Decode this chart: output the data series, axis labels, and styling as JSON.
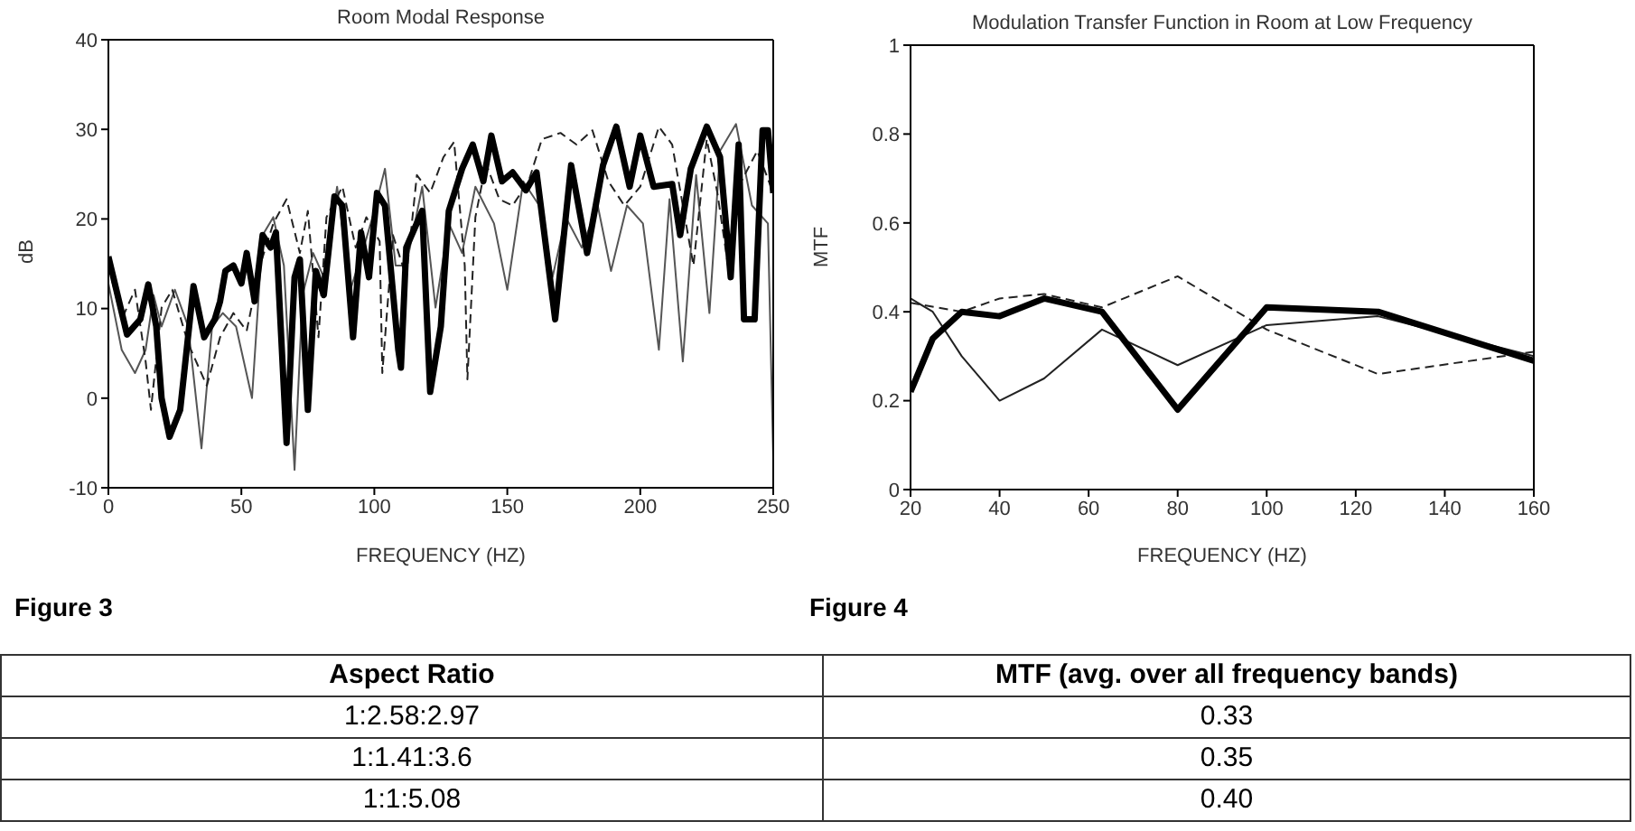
{
  "chart_data": [
    {
      "type": "line",
      "title": "Room Modal Response",
      "xlabel": "FREQUENCY (HZ)",
      "ylabel": "dB",
      "xlim": [
        0,
        250
      ],
      "xticks": [
        0,
        50,
        100,
        150,
        200,
        250
      ],
      "ylim": [
        -10,
        40
      ],
      "yticks": [
        -10,
        0,
        10,
        20,
        30,
        40
      ],
      "marker": "none",
      "annotations": [
        "Figure 3"
      ],
      "series": [
        {
          "color": "#555555",
          "line_style": "solid",
          "x": [
            0,
            5,
            10,
            14,
            17,
            20,
            25,
            30,
            35,
            39,
            43,
            48,
            54,
            58,
            62,
            66,
            70,
            73,
            77,
            81,
            86,
            91,
            96,
            100,
            104,
            108,
            112,
            118,
            123,
            128,
            133,
            138,
            145,
            150,
            156,
            162,
            167,
            172,
            178,
            184,
            189,
            195,
            201,
            207,
            211,
            216,
            221,
            226,
            230,
            236,
            242,
            248,
            250
          ],
          "values": [
            12.8,
            5.4,
            2.8,
            5.4,
            11.5,
            8,
            12.1,
            8,
            -5.6,
            8,
            9.5,
            8,
            0,
            18.2,
            20.2,
            14.8,
            -8,
            11.5,
            16.2,
            13.5,
            23.6,
            12.1,
            16.8,
            20.9,
            25.6,
            14.8,
            14.8,
            23.6,
            10.1,
            19.5,
            16.2,
            23.6,
            19.5,
            12.1,
            24.2,
            21.5,
            13.5,
            20.2,
            16.8,
            21.5,
            14.2,
            21.5,
            19.5,
            5.4,
            22.2,
            4.1,
            24.9,
            9.5,
            27.6,
            30.6,
            21.5,
            19.5,
            -6.6
          ]
        },
        {
          "color": "#222222",
          "line_style": "dashed",
          "x": [
            0,
            5,
            10,
            14,
            16,
            20,
            24,
            30,
            37,
            42,
            47,
            52,
            57,
            62,
            67,
            72,
            75,
            79,
            82,
            88,
            93,
            97,
            102,
            103,
            107,
            112,
            116,
            121,
            126,
            130,
            134,
            135,
            138,
            142,
            147,
            152,
            158,
            163,
            170,
            176,
            182,
            188,
            194,
            200,
            207,
            212,
            216,
            220,
            225,
            229,
            233,
            238,
            244,
            250
          ],
          "values": [
            14.8,
            8.8,
            12.1,
            4.1,
            -1.3,
            10.1,
            12.1,
            6.1,
            1.4,
            6.8,
            9.5,
            7.5,
            14.8,
            19.5,
            22.2,
            16.2,
            20.9,
            6.8,
            20.2,
            23.6,
            16.8,
            20.2,
            17.5,
            2.8,
            18.2,
            13.5,
            24.9,
            22.9,
            26.9,
            28.6,
            14.8,
            2.1,
            20.2,
            26.2,
            22.2,
            21.5,
            24.2,
            28.9,
            29.6,
            28.3,
            29.9,
            24.2,
            21.5,
            23.6,
            30.3,
            28.3,
            21.5,
            14.8,
            28.9,
            22.9,
            14.8,
            24.2,
            27.6,
            22.9
          ]
        },
        {
          "color": "#000000",
          "line_style": "solid",
          "x": [
            0,
            7,
            12,
            15,
            18,
            20,
            23,
            27,
            32,
            36,
            40,
            42,
            44,
            47,
            50,
            52,
            55,
            58,
            61,
            63,
            67,
            70,
            72,
            75,
            78,
            81,
            85,
            88,
            92,
            95,
            98,
            101,
            104,
            109,
            110,
            112,
            118,
            121,
            125,
            128,
            133,
            137,
            141,
            144,
            148,
            152,
            157,
            161,
            168,
            174,
            180,
            186,
            191,
            196,
            200,
            205,
            212,
            215,
            219,
            225,
            230,
            234,
            237,
            239,
            243,
            246,
            248,
            250
          ],
          "values": [
            15.8,
            7.1,
            8.8,
            12.7,
            8,
            0,
            -4.3,
            -1.3,
            12.5,
            6.8,
            8.8,
            10.8,
            14.2,
            14.8,
            12.8,
            16.2,
            10.8,
            18.2,
            16.8,
            18.5,
            -5,
            13.5,
            15.5,
            -1.3,
            14.2,
            11.5,
            22.5,
            21.5,
            6.8,
            18.5,
            13.5,
            22.9,
            21.5,
            5.4,
            3.4,
            16.8,
            20.9,
            0.7,
            8,
            20.9,
            25.6,
            28.3,
            24.2,
            29.3,
            24.2,
            25.2,
            23.2,
            25.2,
            8.8,
            26,
            16.2,
            26,
            30.3,
            23.6,
            29.3,
            23.6,
            23.9,
            18.2,
            25.6,
            30.3,
            26.9,
            13.5,
            28.3,
            8.8,
            8.8,
            29.9,
            29.9,
            22.9
          ]
        }
      ]
    },
    {
      "type": "line",
      "title": "Modulation Transfer Function in Room at Low Frequency",
      "xlabel": "FREQUENCY (HZ)",
      "ylabel": "MTF",
      "xlim": [
        20,
        160
      ],
      "xticks": [
        20,
        40,
        60,
        80,
        100,
        120,
        140,
        160
      ],
      "ylim": [
        0,
        1
      ],
      "yticks": [
        0,
        0.2,
        0.4,
        0.6,
        0.8,
        1
      ],
      "marker": "none",
      "annotations": [
        "Figure 4"
      ],
      "x": [
        20,
        25,
        31.5,
        40,
        50,
        63,
        80,
        100,
        125,
        160
      ],
      "series": [
        {
          "color": "#222222",
          "line_style": "solid",
          "values": [
            0.43,
            0.4,
            0.3,
            0.2,
            0.25,
            0.36,
            0.28,
            0.37,
            0.39,
            0.3
          ]
        },
        {
          "color": "#222222",
          "line_style": "dashed",
          "values": [
            0.42,
            null,
            0.4,
            0.43,
            0.44,
            0.41,
            0.48,
            0.36,
            0.26,
            0.31
          ]
        },
        {
          "color": "#000000",
          "line_style": "solid",
          "values": [
            0.22,
            0.34,
            0.4,
            0.39,
            0.43,
            0.4,
            0.18,
            0.41,
            0.4,
            0.29
          ]
        }
      ]
    },
    {
      "type": "other",
      "annotations": [
        "Aspect Ratio",
        "MTF (avg. over all frequency bands)",
        "1:2.58:2.97",
        "0.33",
        "1:1.41:3.6",
        "0.35",
        "1:1:5.08",
        "0.40"
      ]
    }
  ]
}
